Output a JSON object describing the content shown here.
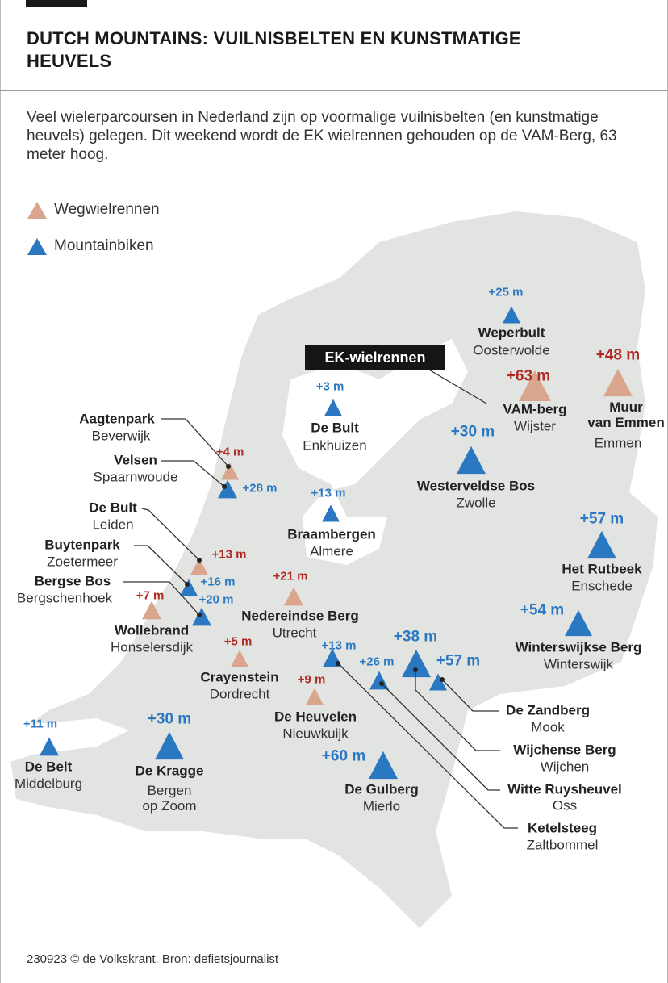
{
  "header": {
    "title": "DUTCH MOUNTAINS: VUILNISBELTEN EN KUNSTMATIGE HEUVELS"
  },
  "intro": "Veel wielerparcoursen in Nederland zijn op voormalige vuilnisbelten (en kunstmatige heuvels) gelegen. Dit weekend wordt de EK wielrennen gehouden op de VAM-Berg, 63 meter hoog.",
  "legend": [
    {
      "label": "Wegwielrennen",
      "color": "#d9a58c",
      "icon": "triangle-icon"
    },
    {
      "label": "Mountainbiken",
      "color": "#2b78c2",
      "icon": "triangle-icon"
    }
  ],
  "callout": "EK-wielrennen",
  "sites": [
    {
      "name": "Weperbult",
      "place": "Oosterwolde",
      "height": "+25 m",
      "type": "Mountainbiken"
    },
    {
      "name": "VAM-berg",
      "place": "Wijster",
      "height": "+63 m",
      "type": "Wegwielrennen"
    },
    {
      "name": "Muur\nvan Emmen",
      "place": "Emmen",
      "height": "+48 m",
      "type": "Wegwielrennen"
    },
    {
      "name": "De Bult",
      "place": "Enkhuizen",
      "height": "+3 m",
      "type": "Mountainbiken"
    },
    {
      "name": "Westerveldse Bos",
      "place": "Zwolle",
      "height": "+30 m",
      "type": "Mountainbiken"
    },
    {
      "name": "Braambergen",
      "place": "Almere",
      "height": "+13 m",
      "type": "Mountainbiken"
    },
    {
      "name": "Het Rutbeek",
      "place": "Enschede",
      "height": "+57 m",
      "type": "Mountainbiken"
    },
    {
      "name": "Winterswijkse Berg",
      "place": "Winterswijk",
      "height": "+54 m",
      "type": "Mountainbiken"
    },
    {
      "name": "Aagtenpark",
      "place": "Beverwijk",
      "height": "+4 m",
      "type": "Wegwielrennen"
    },
    {
      "name": "Velsen",
      "place": "Spaarnwoude",
      "height": "+28 m",
      "type": "Mountainbiken"
    },
    {
      "name": "De Bult",
      "place": "Leiden",
      "height": "+13 m",
      "type": "Wegwielrennen"
    },
    {
      "name": "Buytenpark",
      "place": "Zoetermeer",
      "height": "+16 m",
      "type": "Mountainbiken"
    },
    {
      "name": "Bergse Bos",
      "place": "Bergschenhoek",
      "height": "+20 m",
      "type": "Mountainbiken"
    },
    {
      "name": "Wollebrand",
      "place": "Honselersdijk",
      "height": "+7 m",
      "type": "Wegwielrennen"
    },
    {
      "name": "Nedereindse Berg",
      "place": "Utrecht",
      "height": "+21 m",
      "type": "Wegwielrennen"
    },
    {
      "name": "Crayenstein",
      "place": "Dordrecht",
      "height": "+5 m",
      "type": "Wegwielrennen"
    },
    {
      "name": "De Heuvelen",
      "place": "Nieuwkuijk",
      "height": "+9 m",
      "type": "Wegwielrennen"
    },
    {
      "name": "Ketelsteeg",
      "place": "Zaltbommel",
      "height": "+13 m",
      "type": "Mountainbiken"
    },
    {
      "name": "Witte Ruysheuvel",
      "place": "Oss",
      "height": "+26 m",
      "type": "Mountainbiken"
    },
    {
      "name": "Wijchense Berg",
      "place": "Wijchen",
      "height": "+38 m",
      "type": "Mountainbiken"
    },
    {
      "name": "De Zandberg",
      "place": "Mook",
      "height": "+57 m",
      "type": "Mountainbiken"
    },
    {
      "name": "De Belt",
      "place": "Middelburg",
      "height": "+11 m",
      "type": "Mountainbiken"
    },
    {
      "name": "De Kragge",
      "place": "Bergen\nop Zoom",
      "height": "+30 m",
      "type": "Mountainbiken"
    },
    {
      "name": "De Gulberg",
      "place": "Mierlo",
      "height": "+60 m",
      "type": "Mountainbiken"
    }
  ],
  "footer": "230923 © de Volkskrant. Bron: defietsjournalist"
}
